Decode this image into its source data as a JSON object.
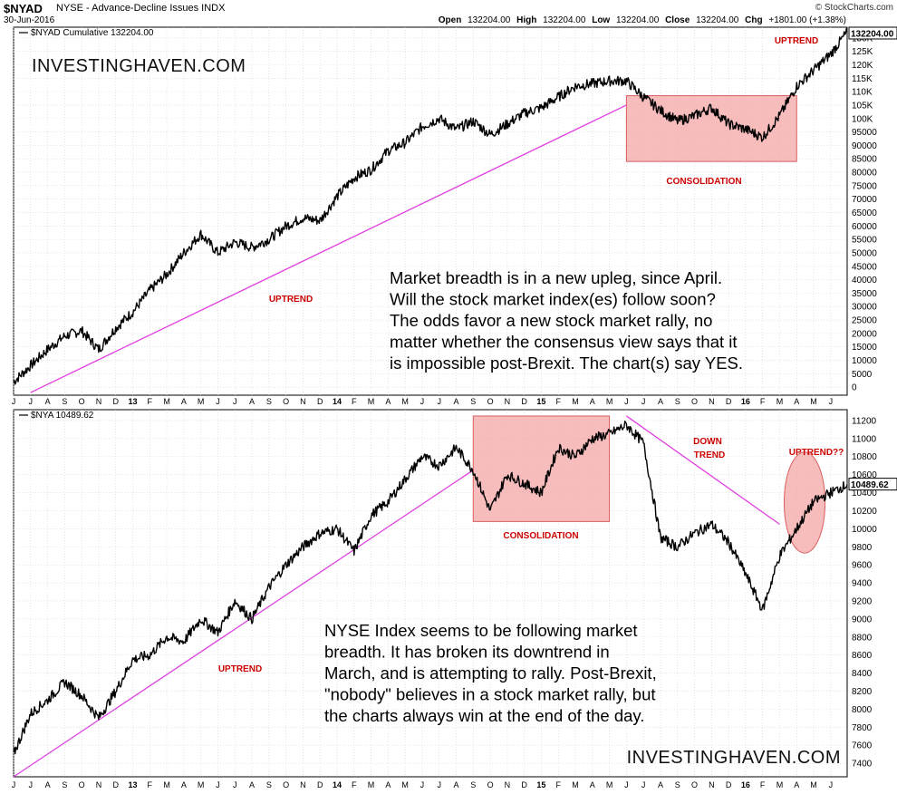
{
  "header": {
    "symbol": "$NYAD",
    "description": "NYSE - Advance-Decline Issues INDX",
    "date": "30-Jun-2016",
    "open_label": "Open",
    "open": "132204.00",
    "high_label": "High",
    "high": "132204.00",
    "low_label": "Low",
    "low": "132204.00",
    "close_label": "Close",
    "close": "132204.00",
    "chg_label": "Chg",
    "chg": "+1801.00 (+1.38%)",
    "logo": "© StockCharts.com"
  },
  "colors": {
    "price_line": "#000000",
    "trendline": "#e040e0",
    "box_fill": "#f4a6a6",
    "box_stroke": "#d86060",
    "annotation_red": "#cc0000",
    "grid": "#d4d4d4"
  },
  "chart_data": [
    {
      "type": "line",
      "legend": "$NYAD Cumulative 132204.00",
      "last_value_label": "132204.00",
      "watermark": "INVESTINGHAVEN.COM",
      "x": [
        "2012-06",
        "2012-07",
        "2012-08",
        "2012-09",
        "2012-10",
        "2012-11",
        "2012-12",
        "2013-01",
        "2013-02",
        "2013-03",
        "2013-04",
        "2013-05",
        "2013-06",
        "2013-07",
        "2013-08",
        "2013-09",
        "2013-10",
        "2013-11",
        "2013-12",
        "2014-01",
        "2014-02",
        "2014-03",
        "2014-04",
        "2014-05",
        "2014-06",
        "2014-07",
        "2014-08",
        "2014-09",
        "2014-10",
        "2014-11",
        "2014-12",
        "2015-01",
        "2015-02",
        "2015-03",
        "2015-04",
        "2015-05",
        "2015-06",
        "2015-07",
        "2015-08",
        "2015-09",
        "2015-10",
        "2015-11",
        "2015-12",
        "2016-01",
        "2016-02",
        "2016-03",
        "2016-04",
        "2016-05",
        "2016-06",
        "2016-06-30"
      ],
      "series": [
        {
          "values": [
            2000,
            8000,
            14000,
            19000,
            21000,
            14000,
            22000,
            28000,
            36000,
            42000,
            50000,
            57000,
            50000,
            54000,
            52000,
            55000,
            60000,
            63000,
            62000,
            71000,
            78000,
            81000,
            88000,
            91000,
            97000,
            100000,
            96000,
            99000,
            94000,
            98000,
            102000,
            104000,
            108000,
            112000,
            113000,
            114000,
            114000,
            108000,
            103000,
            99000,
            101000,
            104000,
            98000,
            96000,
            93000,
            101000,
            112000,
            118000,
            124000,
            132204
          ]
        }
      ],
      "ylim": [
        -3000,
        134000
      ],
      "y_ticks": [
        0,
        5000,
        10000,
        15000,
        20000,
        25000,
        30000,
        35000,
        40000,
        45000,
        50000,
        55000,
        60000,
        65000,
        70000,
        75000,
        80000,
        85000,
        90000,
        95000,
        100000,
        105000,
        110000,
        115000,
        120000,
        125000,
        130000
      ],
      "y_tick_labels": [
        "0",
        "5000",
        "10000",
        "15000",
        "20000",
        "25000",
        "30000",
        "35000",
        "40000",
        "45000",
        "50000",
        "55000",
        "60000",
        "65000",
        "70000",
        "75000",
        "80000",
        "85000",
        "90000",
        "95000",
        "100K",
        "105K",
        "110K",
        "115K",
        "120K",
        "125K",
        "130K"
      ],
      "trendline": {
        "from": [
          "2012-07",
          -2000
        ],
        "to": [
          "2015-06",
          105000
        ]
      },
      "box": {
        "x_from": "2015-06",
        "x_to": "2016-04",
        "y_from": 84000,
        "y_to": 108500
      },
      "labels": {
        "uptrend_left": "UPTREND",
        "consolidation": "CONSOLIDATION",
        "uptrend_right": "UPTREND"
      },
      "note_lines": [
        "Market breadth is in a new upleg, since April.",
        "Will the stock market index(es) follow soon?",
        "The odds favor a new stock market  rally, no",
        "matter whether the consensus view says that it",
        "is impossible post-Brexit. The chart(s) say YES."
      ]
    },
    {
      "type": "line",
      "legend": "$NYA 10489.62",
      "last_value_label": "10489.62",
      "watermark": "INVESTINGHAVEN.COM",
      "x": [
        "2012-06",
        "2012-07",
        "2012-08",
        "2012-09",
        "2012-10",
        "2012-11",
        "2012-12",
        "2013-01",
        "2013-02",
        "2013-03",
        "2013-04",
        "2013-05",
        "2013-06",
        "2013-07",
        "2013-08",
        "2013-09",
        "2013-10",
        "2013-11",
        "2013-12",
        "2014-01",
        "2014-02",
        "2014-03",
        "2014-04",
        "2014-05",
        "2014-06",
        "2014-07",
        "2014-08",
        "2014-09",
        "2014-10",
        "2014-11",
        "2014-12",
        "2015-01",
        "2015-02",
        "2015-03",
        "2015-04",
        "2015-05",
        "2015-06",
        "2015-07",
        "2015-08",
        "2015-09",
        "2015-10",
        "2015-11",
        "2015-12",
        "2016-01",
        "2016-02",
        "2016-03",
        "2016-04",
        "2016-05",
        "2016-06",
        "2016-06-30"
      ],
      "series": [
        {
          "values": [
            7500,
            7950,
            8100,
            8300,
            8150,
            7900,
            8200,
            8550,
            8600,
            8800,
            8750,
            9000,
            8850,
            9200,
            9000,
            9350,
            9600,
            9800,
            9950,
            10000,
            9750,
            10150,
            10300,
            10550,
            10800,
            10700,
            10900,
            10650,
            10200,
            10600,
            10500,
            10400,
            10900,
            10800,
            11000,
            11050,
            11150,
            10950,
            9900,
            9800,
            9950,
            10050,
            9850,
            9500,
            9100,
            9700,
            10000,
            10300,
            10400,
            10489.62
          ]
        }
      ],
      "ylim": [
        7250,
        11320
      ],
      "y_ticks": [
        7400,
        7600,
        7800,
        8000,
        8200,
        8400,
        8600,
        8800,
        9000,
        9200,
        9400,
        9600,
        9800,
        10000,
        10200,
        10400,
        10600,
        10800,
        11000,
        11200
      ],
      "y_tick_labels": [
        "7400",
        "7600",
        "7800",
        "8000",
        "8200",
        "8400",
        "8600",
        "8800",
        "9000",
        "9200",
        "9400",
        "9600",
        "9800",
        "10000",
        "10200",
        "10400",
        "10600",
        "10800",
        "11000",
        "11200"
      ],
      "trendline": {
        "from": [
          "2012-06",
          7250
        ],
        "to": [
          "2014-09",
          10650
        ]
      },
      "downtrend": {
        "from": [
          "2015-06",
          11250
        ],
        "to": [
          "2016-03",
          10050
        ]
      },
      "box": {
        "x_from": "2014-09",
        "x_to": "2015-05",
        "y_from": 10080,
        "y_to": 11250
      },
      "ellipse": {
        "x_center": "2016-04-15",
        "y_center": 10290,
        "x_radius_months": 1.2,
        "y_radius": 560
      },
      "labels": {
        "uptrend_left": "UPTREND",
        "consolidation": "CONSOLIDATION",
        "down_line1": "DOWN",
        "down_line2": "TREND",
        "uptrend_right": "UPTREND??"
      },
      "note_lines": [
        "NYSE Index seems to be following market",
        "breadth. It has broken its downtrend in",
        "March, and is attempting to rally. Post-Brexit,",
        "\"nobody\" believes in a stock market rally, but",
        "the charts always win at the end of the day."
      ]
    }
  ],
  "x_axis": {
    "months": [
      "J",
      "J",
      "A",
      "S",
      "O",
      "N",
      "D",
      "13",
      "F",
      "M",
      "A",
      "M",
      "J",
      "J",
      "A",
      "S",
      "O",
      "N",
      "D",
      "14",
      "F",
      "M",
      "A",
      "M",
      "J",
      "J",
      "A",
      "S",
      "O",
      "N",
      "D",
      "15",
      "F",
      "M",
      "A",
      "M",
      "J",
      "J",
      "A",
      "S",
      "O",
      "N",
      "D",
      "16",
      "F",
      "M",
      "A",
      "M",
      "J"
    ]
  }
}
